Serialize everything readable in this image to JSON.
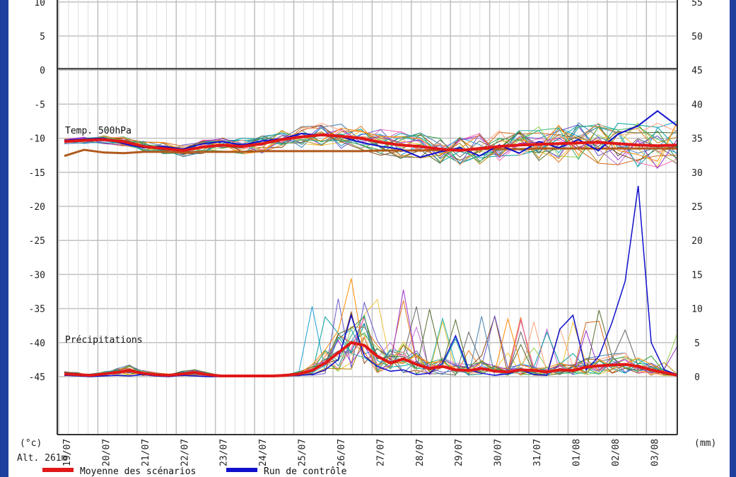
{
  "chart_data": {
    "type": "line",
    "y_left_unit": "(°c)",
    "y_right_unit": "(mm)",
    "altitude": "Alt. 261m",
    "y_left_ticks_upper": [
      10,
      5,
      0
    ],
    "y_left_ticks_lower": [
      -5,
      -10,
      -15,
      -20,
      -25,
      -30,
      -35,
      -40,
      -45
    ],
    "y_right_ticks": [
      55,
      50,
      45,
      40,
      35,
      30,
      25,
      20,
      15,
      10,
      5,
      0
    ],
    "y_left_range": [
      -45,
      10
    ],
    "y_right_range": [
      0,
      55
    ],
    "x_labels": [
      "19/07",
      "20/07",
      "21/07",
      "22/07",
      "23/07",
      "24/07",
      "25/07",
      "26/07",
      "27/07",
      "28/07",
      "29/07",
      "30/07",
      "31/07",
      "01/08",
      "02/08",
      "03/08"
    ],
    "annotations": {
      "temp": "Temp. 500hPa",
      "precip": "Précipitations"
    },
    "legend": {
      "mean": "Moyenne des scénarios",
      "control": "Run de contrôle"
    },
    "colors": {
      "mean": "#e01818",
      "control": "#1010cc",
      "climatology": "#b05a1e",
      "grid": "#c0c0c0"
    },
    "mean_temp": [
      -10.5,
      -10.3,
      -10.2,
      -10.5,
      -11.2,
      -11.5,
      -11.8,
      -11.3,
      -11.0,
      -11.2,
      -10.8,
      -10.2,
      -9.8,
      -9.5,
      -9.7,
      -10.0,
      -10.6,
      -11.0,
      -11.2,
      -11.6,
      -11.8,
      -11.5,
      -11.2,
      -11.0,
      -10.9,
      -10.8,
      -10.7,
      -10.6,
      -10.8,
      -11.0,
      -11.1,
      -11.0
    ],
    "climatology_temp": [
      -12.6,
      -11.7,
      -12.1,
      -12.2,
      -12.0,
      -12.0,
      -12.1,
      -12.0,
      -12.0,
      -12.0,
      -11.9,
      -11.9,
      -11.9,
      -11.9,
      -11.9,
      -11.9,
      -11.8,
      -11.8,
      -11.8,
      -11.7,
      -11.7,
      -11.6,
      -11.6,
      -11.6,
      -11.5,
      -11.5,
      -11.5,
      -11.5,
      -11.5,
      -11.5,
      -11.5,
      -11.5
    ],
    "control_temp": [
      -10.3,
      -10.1,
      -10.0,
      -10.8,
      -11.4,
      -11.2,
      -11.6,
      -10.8,
      -10.5,
      -11.0,
      -10.4,
      -10.1,
      -9.3,
      -9.6,
      -9.8,
      -10.6,
      -11.2,
      -11.6,
      -12.8,
      -12.0,
      -11.4,
      -12.6,
      -11.0,
      -12.2,
      -10.5,
      -11.4,
      -10.2,
      -11.8,
      -9.4,
      -8.2,
      -6.0,
      -8.2
    ],
    "mean_precip": [
      0.4,
      0.3,
      0.2,
      0.4,
      0.6,
      0.9,
      0.5,
      0.3,
      0.2,
      0.4,
      0.6,
      0.3,
      0.1,
      0.1,
      0.1,
      0.1,
      0.1,
      0.2,
      0.4,
      0.9,
      2.0,
      3.5,
      5.0,
      4.6,
      3.0,
      2.0,
      2.6,
      1.8,
      1.2,
      1.5,
      1.0,
      0.9,
      1.2,
      0.8,
      0.7,
      1.0,
      0.9,
      0.7,
      1.0,
      0.9,
      1.4,
      1.6,
      1.7,
      1.8,
      1.5,
      1.0,
      0.6,
      0.2
    ],
    "control_precip": [
      0.2,
      0.1,
      0.0,
      0.1,
      0.2,
      0.1,
      0.3,
      0.1,
      0.0,
      0.2,
      0.1,
      0.0,
      0.0,
      0.0,
      0.0,
      0.0,
      0.0,
      0.1,
      0.2,
      0.3,
      1.0,
      2.5,
      9.0,
      3.0,
      1.5,
      0.8,
      1.0,
      0.3,
      0.5,
      2.0,
      6.0,
      1.0,
      0.5,
      0.2,
      0.4,
      1.0,
      0.3,
      0.2,
      7.0,
      9.0,
      1.0,
      3.0,
      8.0,
      14.0,
      28.0,
      5.0,
      1.0,
      0.3
    ]
  }
}
